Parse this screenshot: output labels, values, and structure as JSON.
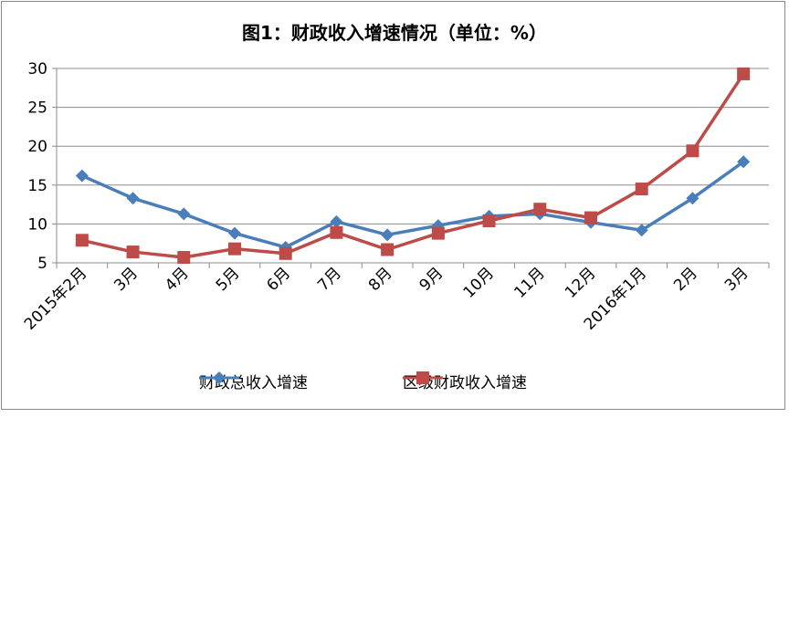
{
  "chart_data": {
    "type": "line",
    "title": "图1：财政收入增速情况（单位：%）",
    "categories": [
      "2015年2月",
      "3月",
      "4月",
      "5月",
      "6月",
      "7月",
      "8月",
      "9月",
      "10月",
      "11月",
      "12月",
      "2016年1月",
      "2月",
      "3月"
    ],
    "ylim": [
      5,
      30
    ],
    "yticks": [
      5,
      10,
      15,
      20,
      25,
      30
    ],
    "grid": true,
    "legend_position": "bottom",
    "series": [
      {
        "name": "财政总收入增速",
        "color": "#4a7ebb",
        "marker": "diamond",
        "values": [
          16.2,
          13.3,
          11.3,
          8.8,
          7.0,
          10.3,
          8.6,
          9.8,
          11.0,
          11.3,
          10.2,
          9.2,
          13.3,
          18.0
        ]
      },
      {
        "name": "区级财政收入增速",
        "color": "#be4b48",
        "marker": "square",
        "values": [
          7.9,
          6.4,
          5.7,
          6.8,
          6.2,
          8.9,
          6.7,
          8.8,
          10.4,
          11.9,
          10.8,
          14.5,
          19.4,
          29.3
        ]
      }
    ]
  }
}
